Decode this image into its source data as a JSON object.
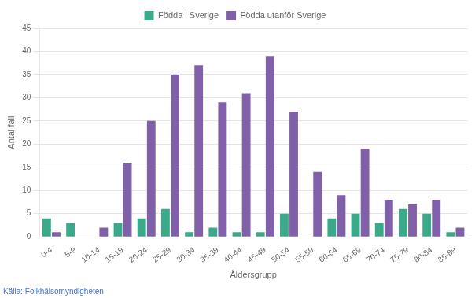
{
  "chart_data": {
    "type": "bar",
    "categories": [
      "0-4",
      "5-9",
      "10-14",
      "15-19",
      "20-24",
      "25-29",
      "30-34",
      "35-39",
      "40-44",
      "45-49",
      "50-54",
      "55-59",
      "60-64",
      "65-69",
      "70-74",
      "75-79",
      "80-84",
      "85-89"
    ],
    "series": [
      {
        "name": "Födda i Sverige",
        "color": "#3aaa8a",
        "values": [
          4,
          3,
          0,
          3,
          4,
          6,
          1,
          2,
          1,
          1,
          5,
          0,
          4,
          5,
          3,
          6,
          5,
          1
        ]
      },
      {
        "name": "Födda utanför Sverige",
        "color": "#8060a8",
        "values": [
          1,
          0,
          2,
          16,
          25,
          35,
          37,
          29,
          31,
          39,
          27,
          14,
          9,
          19,
          8,
          7,
          8,
          2
        ]
      }
    ],
    "ylabel": "Antal fall",
    "xlabel": "Åldersgrupp",
    "source": "Källa: Folkhälsomyndigheten",
    "ylim": [
      0,
      45
    ],
    "yticks": [
      0,
      5,
      10,
      15,
      20,
      25,
      30,
      35,
      40,
      45
    ],
    "grid": true,
    "legend": "top"
  }
}
